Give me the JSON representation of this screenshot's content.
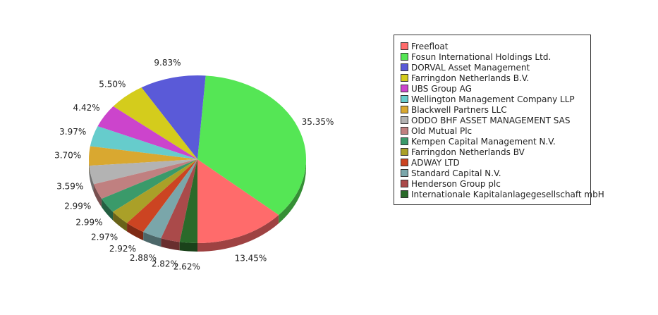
{
  "chart_data": {
    "type": "pie",
    "title": "",
    "legend_position": "right",
    "slices": [
      {
        "name": "Freefloat",
        "value": 13.45,
        "label": "13.45%",
        "color": "#ff6b6b"
      },
      {
        "name": "Fosun International Holdings Ltd.",
        "value": 35.35,
        "label": "35.35%",
        "color": "#55e655"
      },
      {
        "name": "DORVAL Asset Management",
        "value": 9.83,
        "label": "9.83%",
        "color": "#5a5ad8"
      },
      {
        "name": "Farringdon Netherlands B.V.",
        "value": 5.5,
        "label": "5.50%",
        "color": "#d4cc1c"
      },
      {
        "name": "UBS Group AG",
        "value": 4.42,
        "label": "4.42%",
        "color": "#cc44cc"
      },
      {
        "name": "Wellington Management Company LLP",
        "value": 3.97,
        "label": "3.97%",
        "color": "#66cccc"
      },
      {
        "name": "Blackwell Partners LLC",
        "value": 3.7,
        "label": "3.70%",
        "color": "#d9a830"
      },
      {
        "name": "ODDO BHF ASSET MANAGEMENT SAS",
        "value": 3.59,
        "label": "3.59%",
        "color": "#b3b3b3"
      },
      {
        "name": "Old Mutual Plc",
        "value": 2.99,
        "label": "2.99%",
        "color": "#c08080"
      },
      {
        "name": "Kempen Capital Management N.V.",
        "value": 2.99,
        "label": "2.99%",
        "color": "#3a9a6a"
      },
      {
        "name": "Farringdon Netherlands BV",
        "value": 2.97,
        "label": "2.97%",
        "color": "#aaa028"
      },
      {
        "name": "ADWAY LTD",
        "value": 2.92,
        "label": "2.92%",
        "color": "#cc4422"
      },
      {
        "name": "Standard Capital N.V.",
        "value": 2.88,
        "label": "2.88%",
        "color": "#7aa6aa"
      },
      {
        "name": "Henderson Group plc",
        "value": 2.82,
        "label": "2.82%",
        "color": "#aa4a4a"
      },
      {
        "name": "Internationale Kapitalanlagegesellschaft mbH",
        "value": 2.62,
        "label": "2.62%",
        "color": "#2a6a2a"
      }
    ]
  }
}
